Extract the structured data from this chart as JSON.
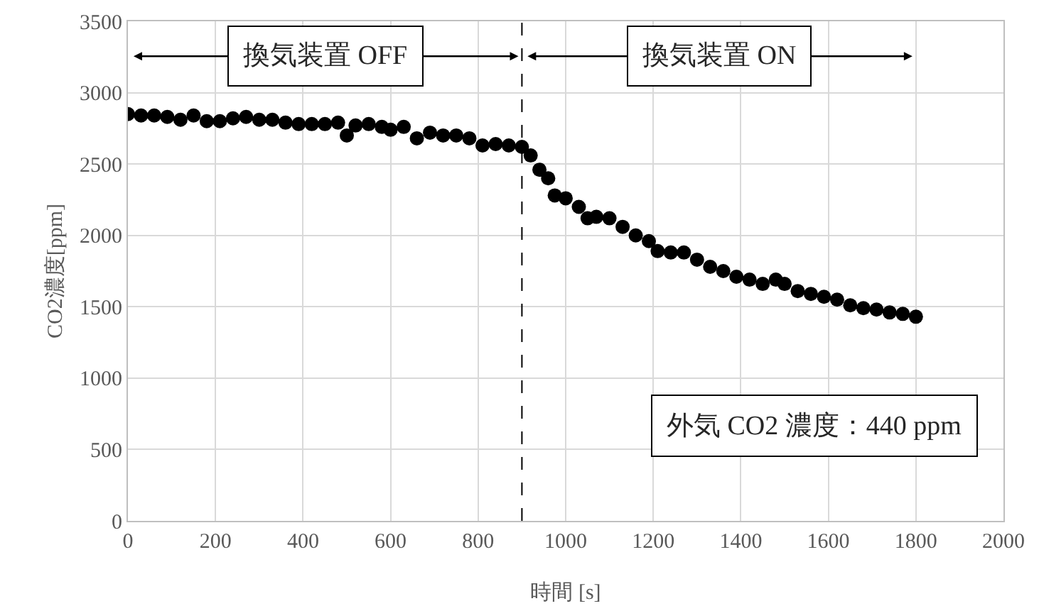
{
  "chart_data": {
    "type": "scatter",
    "xlabel": "時間 [s]",
    "ylabel": "CO2濃度[ppm]",
    "x": [
      0,
      30,
      60,
      90,
      120,
      150,
      180,
      210,
      240,
      270,
      300,
      330,
      360,
      390,
      420,
      450,
      480,
      500,
      520,
      550,
      580,
      600,
      630,
      660,
      690,
      720,
      750,
      780,
      810,
      840,
      870,
      900,
      920,
      940,
      960,
      975,
      1000,
      1030,
      1050,
      1070,
      1100,
      1130,
      1160,
      1190,
      1210,
      1240,
      1270,
      1300,
      1330,
      1360,
      1390,
      1420,
      1450,
      1480,
      1500,
      1530,
      1560,
      1590,
      1620,
      1650,
      1680,
      1710,
      1740,
      1770,
      1800
    ],
    "series": [
      {
        "color": "#000000",
        "values": [
          2850,
          2840,
          2840,
          2830,
          2810,
          2840,
          2800,
          2800,
          2820,
          2830,
          2810,
          2810,
          2790,
          2780,
          2780,
          2780,
          2790,
          2700,
          2770,
          2780,
          2760,
          2740,
          2760,
          2680,
          2720,
          2700,
          2700,
          2680,
          2630,
          2640,
          2630,
          2620,
          2560,
          2460,
          2400,
          2280,
          2260,
          2200,
          2120,
          2130,
          2120,
          2060,
          2000,
          1960,
          1890,
          1880,
          1880,
          1830,
          1780,
          1750,
          1710,
          1690,
          1660,
          1690,
          1660,
          1610,
          1590,
          1570,
          1550,
          1510,
          1490,
          1480,
          1460,
          1450,
          1430
        ]
      }
    ],
    "xlim": [
      0,
      2000
    ],
    "xticks": [
      0,
      200,
      400,
      600,
      800,
      1000,
      1200,
      1400,
      1600,
      1800,
      2000
    ],
    "ylim": [
      0,
      3500
    ],
    "yticks": [
      0,
      500,
      1000,
      1500,
      2000,
      2500,
      3000,
      3500
    ],
    "ref_lines": [
      {
        "axis": "x",
        "value": 900,
        "color": "#000000",
        "line_style": "dashed"
      }
    ],
    "annotations": [
      "換気装置 OFF",
      "換気装置 ON",
      "外気 CO2 濃度：440 ppm"
    ],
    "grid": true,
    "legend": false,
    "marker": "circle"
  }
}
